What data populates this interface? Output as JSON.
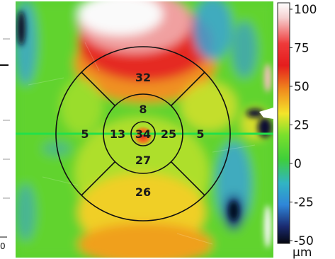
{
  "thickness_map": {
    "center": "34",
    "inner": {
      "superior": "8",
      "inferior": "27",
      "temporal": "13",
      "nasal": "25"
    },
    "outer": {
      "superior": "32",
      "inferior": "26",
      "temporal": "5",
      "nasal": "5"
    }
  },
  "colorbar": {
    "ticks": [
      "100",
      "75",
      "50",
      "25",
      "0",
      "-25",
      "-50"
    ],
    "unit": "µm",
    "colors": [
      "#ffffff",
      "#e02020",
      "#f3a21d",
      "#f0ee2a",
      "#4fd52c",
      "#39a6e2",
      "#0b0f33"
    ]
  },
  "left_edge_label": "0",
  "scanline_color": "#22e04a"
}
